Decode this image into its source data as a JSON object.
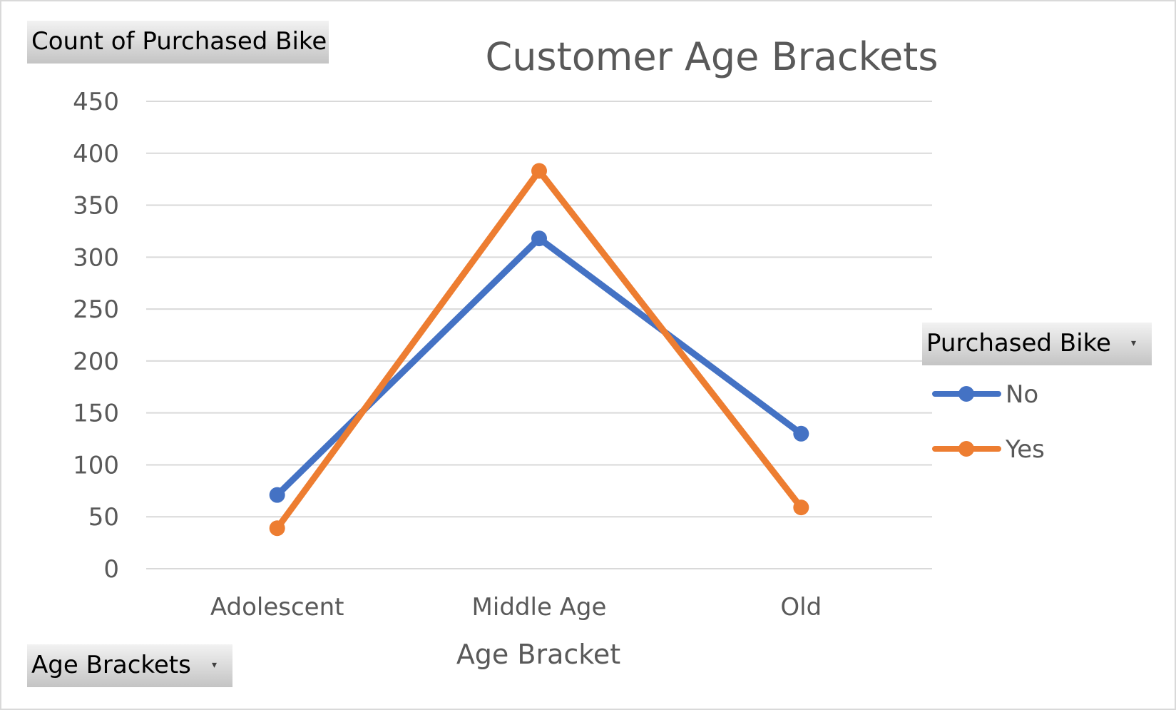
{
  "value_field_label": "Count of Purchased Bike",
  "axis_field_label": "Age Brackets",
  "legend_field_label": "Purchased Bike",
  "colors": {
    "No": "#4472c4",
    "Yes": "#ed7d31",
    "grid": "#d9d9d9",
    "text": "#595959"
  },
  "chart_data": {
    "type": "line",
    "title": "Customer Age Brackets",
    "xlabel": "Age Bracket",
    "ylabel": "",
    "categories": [
      "Adolescent",
      "Middle Age",
      "Old"
    ],
    "series": [
      {
        "name": "No",
        "values": [
          71,
          318,
          130
        ]
      },
      {
        "name": "Yes",
        "values": [
          39,
          383,
          59
        ]
      }
    ],
    "ylim": [
      0,
      450
    ],
    "yticks": [
      0,
      50,
      100,
      150,
      200,
      250,
      300,
      350,
      400,
      450
    ],
    "grid": true,
    "legend_position": "right",
    "markers": true
  }
}
